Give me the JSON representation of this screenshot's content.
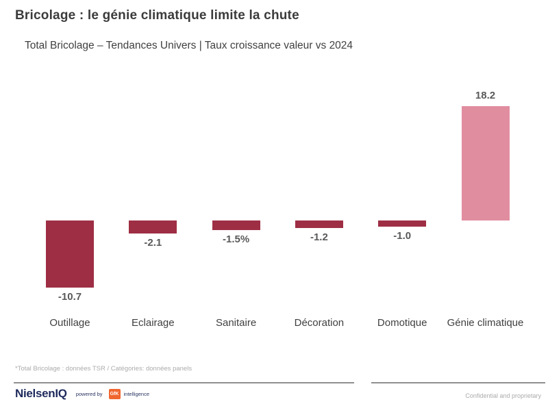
{
  "page": {
    "title": "Bricolage : le génie climatique limite la chute",
    "subtitle": "Total Bricolage – Tendances Univers | Taux croissance valeur vs 2024"
  },
  "chart_data": {
    "type": "bar",
    "categories": [
      "Outillage",
      "Eclairage",
      "Sanitaire",
      "Décoration",
      "Domotique",
      "Génie climatique"
    ],
    "values": [
      -10.7,
      -2.1,
      -1.5,
      -1.2,
      -1.0,
      18.2
    ],
    "value_labels": [
      "-10.7",
      "-2.1",
      "-1.5%",
      "-1.2",
      "-1.0",
      "18.2"
    ],
    "title": "Bricolage : le génie climatique limite la chute",
    "subtitle": "Total Bricolage – Tendances Univers | Taux croissance valeur vs 2024",
    "xlabel": "",
    "ylabel": "",
    "ylim": [
      -12,
      20
    ],
    "grid": false,
    "legend": false,
    "colors": {
      "bar_negative": "#9e2e44",
      "bar_positive": "#e18da0",
      "value_label": "#595959",
      "category_label": "#3f3f3f"
    }
  },
  "footer": {
    "note": "*Total Bricolage : données TSR  /  Catégories: données panels",
    "brand": "NielsenIQ",
    "powered_by": "powered by",
    "gfk": "GfK",
    "intelligence": "intelligence",
    "confidential": "Confidential and proprietary"
  }
}
